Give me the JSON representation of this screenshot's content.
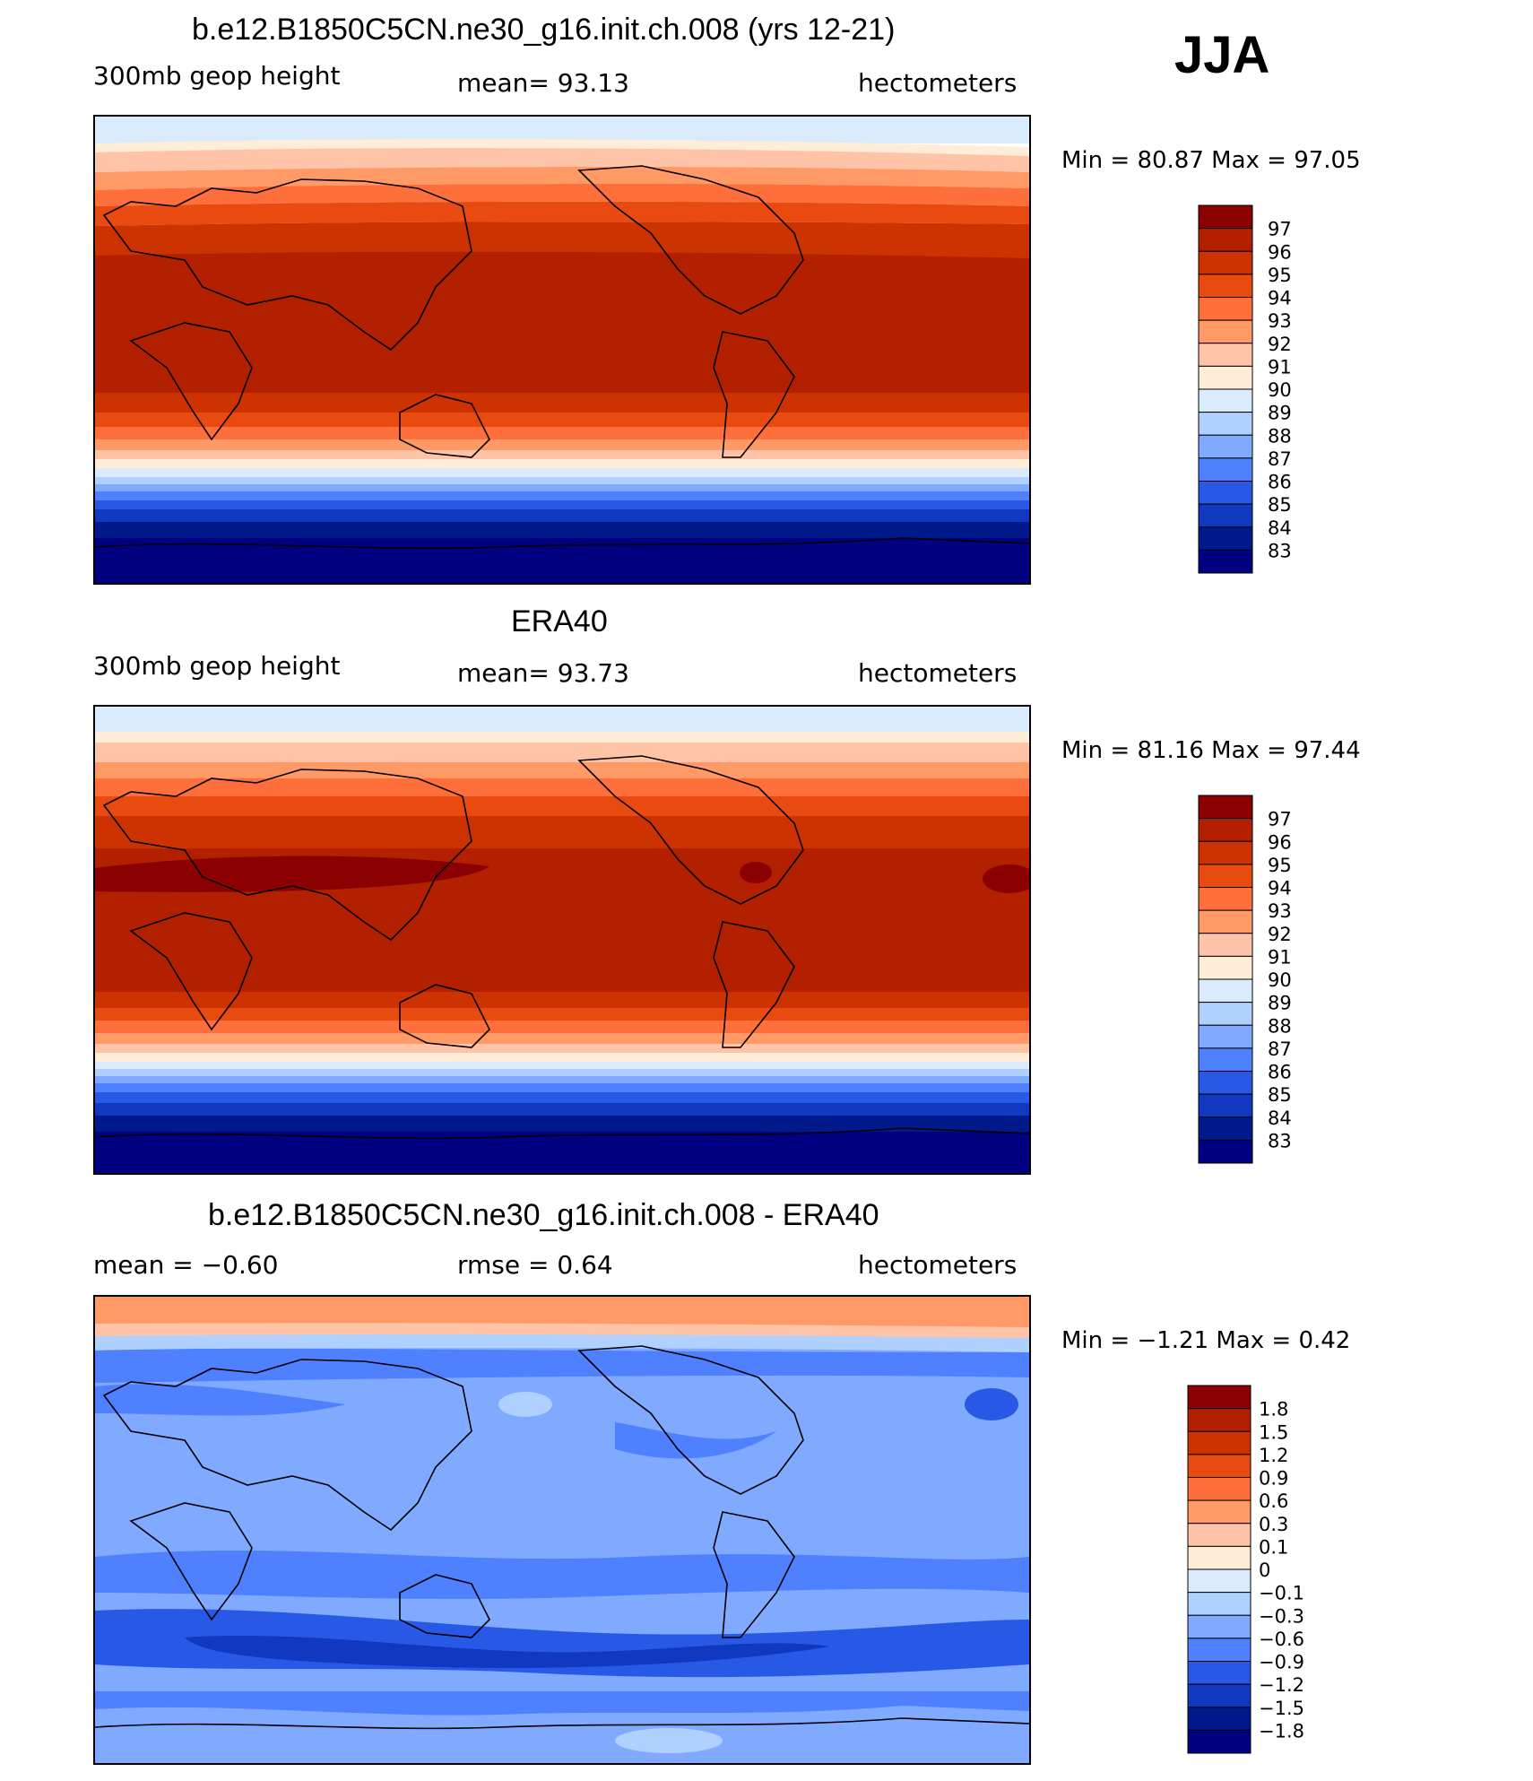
{
  "season": "JJA",
  "panels": [
    {
      "title": "b.e12.B1850C5CN.ne30_g16.init.ch.008 (yrs 12-21)",
      "left_label": "300mb  geop  height",
      "center_label": "mean=   93.13",
      "right_label": "hectometers",
      "minmax": "Min  =    80.87  Max  =    97.05",
      "legend_labels": [
        "97",
        "96",
        "95",
        "94",
        "93",
        "92",
        "91",
        "90",
        "89",
        "88",
        "87",
        "86",
        "85",
        "84",
        "83"
      ],
      "legend_colors": [
        "#8b0000",
        "#b22000",
        "#cc3300",
        "#e84a10",
        "#ff6f3c",
        "#ff9966",
        "#ffc4a8",
        "#ffedd8",
        "#d9ebfc",
        "#b0d0ff",
        "#80aaff",
        "#4f80ff",
        "#2759e6",
        "#1038c0",
        "#001a8c",
        "#000080"
      ]
    },
    {
      "title": "ERA40",
      "left_label": "300mb  geop  height",
      "center_label": "mean=   93.73",
      "right_label": "hectometers",
      "minmax": "Min  =    81.16  Max  =    97.44",
      "legend_labels": [
        "97",
        "96",
        "95",
        "94",
        "93",
        "92",
        "91",
        "90",
        "89",
        "88",
        "87",
        "86",
        "85",
        "84",
        "83"
      ],
      "legend_colors": [
        "#8b0000",
        "#b22000",
        "#cc3300",
        "#e84a10",
        "#ff6f3c",
        "#ff9966",
        "#ffc4a8",
        "#ffedd8",
        "#d9ebfc",
        "#b0d0ff",
        "#80aaff",
        "#4f80ff",
        "#2759e6",
        "#1038c0",
        "#001a8c",
        "#000080"
      ]
    },
    {
      "title": "b.e12.B1850C5CN.ne30_g16.init.ch.008 - ERA40",
      "left_label": "mean  =    −0.60",
      "center_label": "rmse  =     0.64",
      "right_label": "hectometers",
      "minmax": "Min  =   −1.21  Max  =     0.42",
      "legend_labels": [
        "1.8",
        "1.5",
        "1.2",
        "0.9",
        "0.6",
        "0.3",
        "0.1",
        "0",
        "−0.1",
        "−0.3",
        "−0.6",
        "−0.9",
        "−1.2",
        "−1.5",
        "−1.8"
      ],
      "legend_colors": [
        "#8b0000",
        "#b22000",
        "#cc3300",
        "#e84a10",
        "#ff6f3c",
        "#ff9966",
        "#ffc4a8",
        "#ffedd8",
        "#d9ebfc",
        "#b0d0ff",
        "#80aaff",
        "#4f80ff",
        "#2759e6",
        "#1038c0",
        "#001a8c",
        "#000080"
      ]
    }
  ]
}
